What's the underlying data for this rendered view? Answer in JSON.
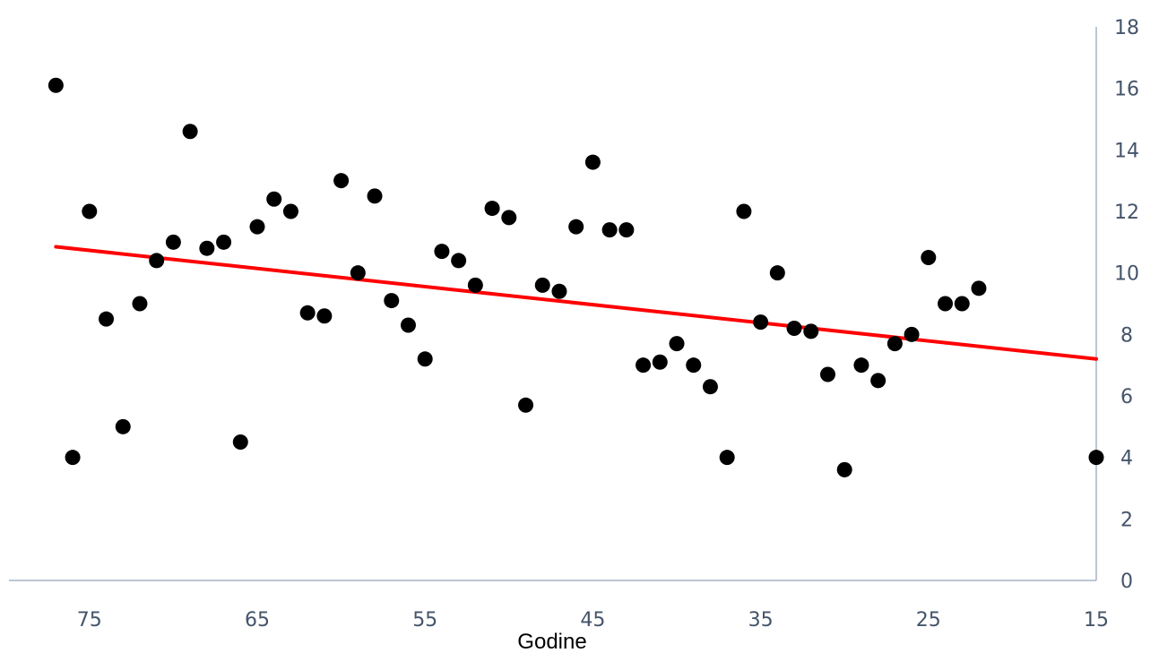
{
  "chart_data": {
    "type": "scatter",
    "title": "",
    "xlabel": "Godine",
    "ylabel": "",
    "x_reversed": true,
    "xlim": [
      15,
      78
    ],
    "ylim": [
      0,
      18
    ],
    "x_ticks": [
      75,
      65,
      55,
      45,
      35,
      25,
      15
    ],
    "y_ticks": [
      0,
      2,
      4,
      6,
      8,
      10,
      12,
      14,
      16,
      18
    ],
    "y_axis_position": "right",
    "grid": false,
    "legend": "none",
    "colors": {
      "points": "#000000",
      "trendline": "#ff0000",
      "axis": "#a6b4c3",
      "tick_text": "#44546a"
    },
    "series": [
      {
        "points": [
          [
            77,
            16.1
          ],
          [
            76,
            4.0
          ],
          [
            75,
            12.0
          ],
          [
            74,
            8.5
          ],
          [
            73,
            5.0
          ],
          [
            72,
            9.0
          ],
          [
            71,
            10.4
          ],
          [
            70,
            11.0
          ],
          [
            69,
            14.6
          ],
          [
            68,
            10.8
          ],
          [
            67,
            11.0
          ],
          [
            66,
            4.5
          ],
          [
            65,
            11.5
          ],
          [
            64,
            12.4
          ],
          [
            63,
            12.0
          ],
          [
            62,
            8.7
          ],
          [
            61,
            8.6
          ],
          [
            60,
            13.0
          ],
          [
            59,
            10.0
          ],
          [
            58,
            12.5
          ],
          [
            57,
            9.1
          ],
          [
            56,
            8.3
          ],
          [
            55,
            7.2
          ],
          [
            54,
            10.7
          ],
          [
            53,
            10.4
          ],
          [
            52,
            9.6
          ],
          [
            51,
            12.1
          ],
          [
            50,
            11.8
          ],
          [
            49,
            5.7
          ],
          [
            48,
            9.6
          ],
          [
            47,
            9.4
          ],
          [
            46,
            11.5
          ],
          [
            45,
            13.6
          ],
          [
            44,
            11.4
          ],
          [
            43,
            11.4
          ],
          [
            42,
            7.0
          ],
          [
            41,
            7.1
          ],
          [
            40,
            7.7
          ],
          [
            39,
            7.0
          ],
          [
            38,
            6.3
          ],
          [
            37,
            4.0
          ],
          [
            36,
            12.0
          ],
          [
            35,
            8.4
          ],
          [
            34,
            10.0
          ],
          [
            33,
            8.2
          ],
          [
            32,
            8.1
          ],
          [
            31,
            6.7
          ],
          [
            30,
            3.6
          ],
          [
            29,
            7.0
          ],
          [
            28,
            6.5
          ],
          [
            27,
            7.7
          ],
          [
            26,
            8.0
          ],
          [
            25,
            10.5
          ],
          [
            24,
            9.0
          ],
          [
            23,
            9.0
          ],
          [
            22,
            9.5
          ],
          [
            15,
            4.0
          ]
        ]
      }
    ],
    "trendline": {
      "type": "linear",
      "points": [
        [
          77,
          10.85
        ],
        [
          15,
          7.2
        ]
      ]
    }
  }
}
